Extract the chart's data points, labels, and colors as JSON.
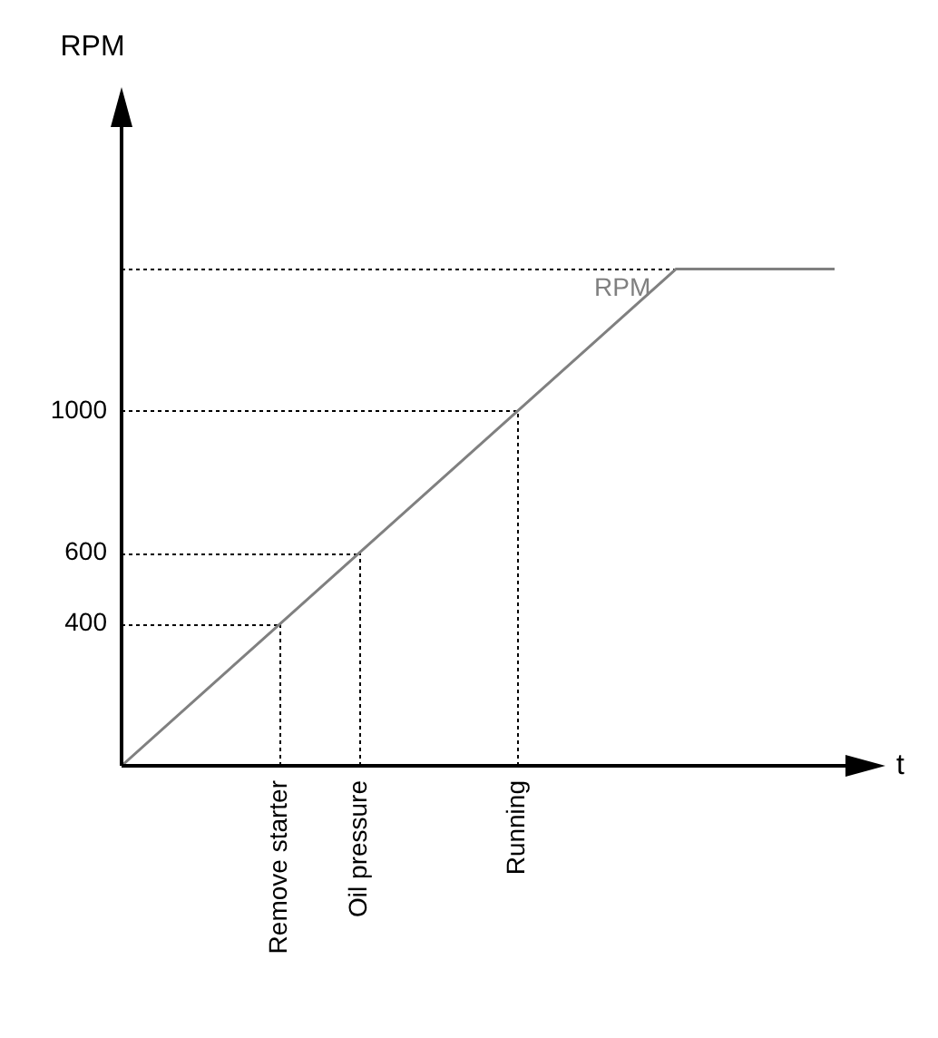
{
  "chart_data": {
    "type": "line",
    "xlabel": "t",
    "ylabel": "RPM",
    "categories": [
      null,
      null,
      "Remove starter",
      "Oil pressure",
      null,
      "Running",
      null,
      null,
      null,
      null
    ],
    "series": [
      {
        "name": "RPM",
        "color": "#808080",
        "values": [
          0,
          null,
          400,
          600,
          null,
          1000,
          null,
          1400,
          null,
          1400
        ]
      }
    ],
    "ylim": [
      0,
      1800
    ],
    "yticks": [
      400,
      600,
      1000
    ],
    "ref_lines": [
      {
        "axis": "y",
        "value": 400,
        "color": "#000000",
        "line_style": "dotted"
      },
      {
        "axis": "y",
        "value": 600,
        "color": "#000000",
        "line_style": "dotted"
      },
      {
        "axis": "y",
        "value": 1000,
        "color": "#000000",
        "line_style": "dotted"
      },
      {
        "axis": "y",
        "value": 1400,
        "color": "#000000",
        "line_style": "dotted"
      },
      {
        "axis": "x",
        "value": "Remove starter",
        "color": "#000000",
        "line_style": "dotted"
      },
      {
        "axis": "x",
        "value": "Oil pressure",
        "color": "#000000",
        "line_style": "dotted"
      },
      {
        "axis": "x",
        "value": "Running",
        "color": "#000000",
        "line_style": "dotted"
      }
    ],
    "legend": false,
    "marker": "none",
    "line_style": "solid"
  }
}
